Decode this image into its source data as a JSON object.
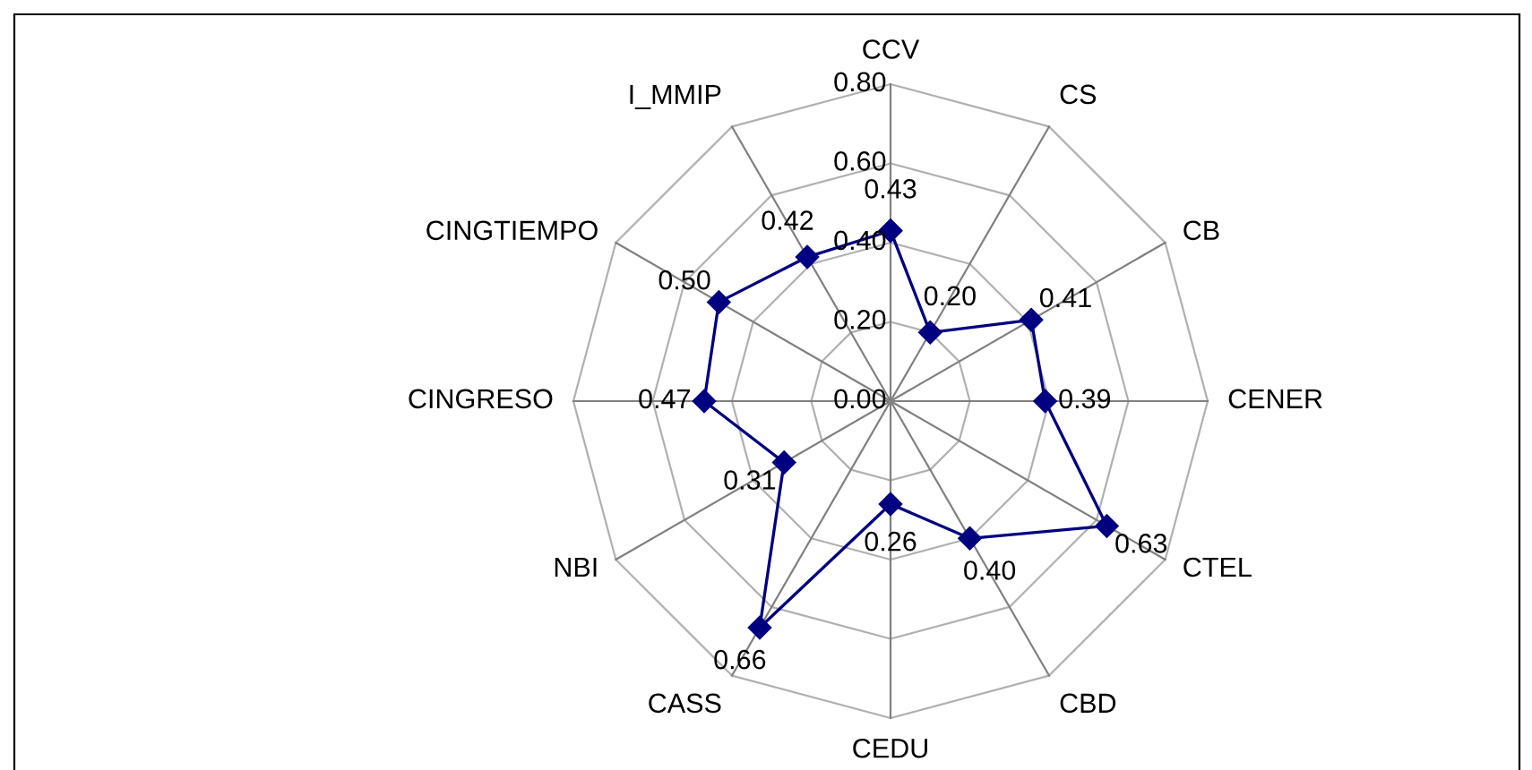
{
  "chart_data": {
    "type": "radar",
    "categories": [
      "CCV",
      "CS",
      "CB",
      "CENER",
      "CTEL",
      "CBD",
      "CEDU",
      "CASS",
      "NBI",
      "CINGRESO",
      "CINGTIEMPO",
      "I_MMIP"
    ],
    "series": [
      {
        "color": "#000080",
        "values": [
          0.43,
          0.2,
          0.41,
          0.39,
          0.63,
          0.4,
          0.26,
          0.66,
          0.31,
          0.47,
          0.5,
          0.42
        ],
        "value_labels": [
          "0.43",
          "0.20",
          "0.41",
          "0.39",
          "0.63",
          "0.40",
          "0.26",
          "0.66",
          "0.31",
          "0.47",
          "0.50",
          "0.42"
        ]
      }
    ],
    "ylim": [
      0,
      0.8
    ],
    "yticks": [
      {
        "value": 0,
        "label": "0.00"
      },
      {
        "value": 0.2,
        "label": "0.20"
      },
      {
        "value": 0.4,
        "label": "0.40"
      },
      {
        "value": 0.6,
        "label": "0.60"
      },
      {
        "value": 0.8,
        "label": "0.80"
      }
    ],
    "marker": "diamond",
    "grid": true
  }
}
